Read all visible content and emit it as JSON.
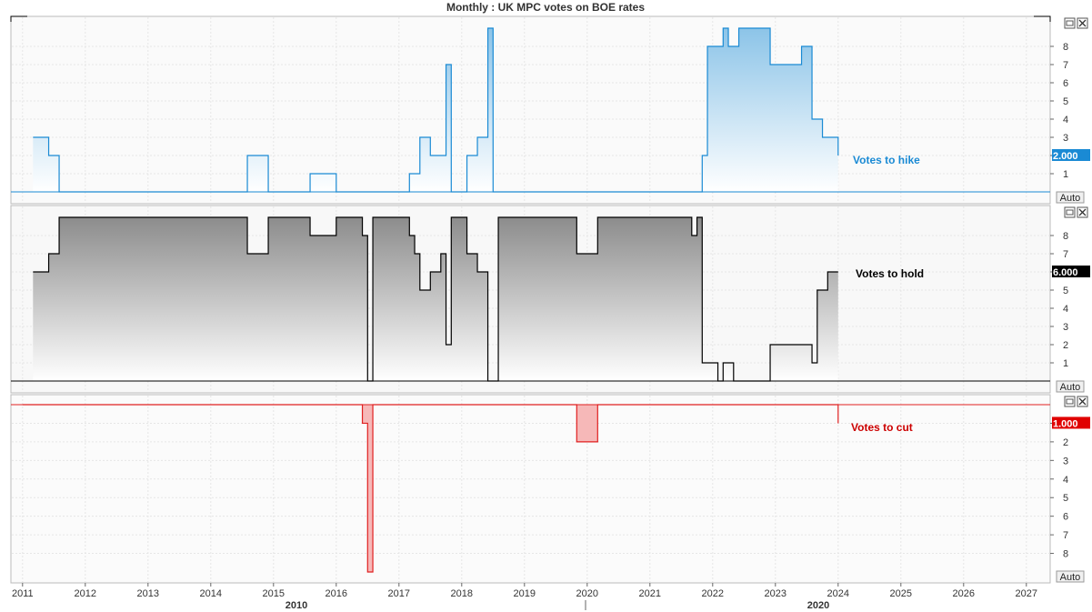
{
  "title": "Monthly : UK MPC votes on BOE rates",
  "controls": {
    "auto_label": "Auto"
  },
  "chart_data": [
    {
      "type": "area",
      "step": true,
      "series": [
        {
          "name": "Votes to hike",
          "color": "#1a8ad4",
          "last_value_label": "2.000",
          "points": [
            [
              "2011-03",
              3
            ],
            [
              "2011-06",
              2
            ],
            [
              "2011-08",
              0
            ],
            [
              "2014-08",
              2
            ],
            [
              "2014-12",
              0
            ],
            [
              "2015-08",
              1
            ],
            [
              "2016-01",
              0
            ],
            [
              "2017-03",
              1
            ],
            [
              "2017-05",
              3
            ],
            [
              "2017-07",
              2
            ],
            [
              "2017-10",
              7
            ],
            [
              "2017-11",
              0
            ],
            [
              "2018-02",
              2
            ],
            [
              "2018-04",
              3
            ],
            [
              "2018-06",
              9
            ],
            [
              "2018-07",
              0
            ],
            [
              "2021-11",
              2
            ],
            [
              "2021-12",
              8
            ],
            [
              "2022-03",
              9
            ],
            [
              "2022-04",
              8
            ],
            [
              "2022-06",
              9
            ],
            [
              "2022-12",
              7
            ],
            [
              "2023-06",
              8
            ],
            [
              "2023-08",
              4
            ],
            [
              "2023-10",
              3
            ],
            [
              "2024-01",
              2
            ]
          ]
        }
      ],
      "ylim": [
        0,
        9.5
      ],
      "yticks": [
        1,
        2,
        3,
        4,
        5,
        6,
        7,
        8
      ]
    },
    {
      "type": "area",
      "step": true,
      "series": [
        {
          "name": "Votes to hold",
          "color": "#000000",
          "last_value_label": "6.000",
          "points": [
            [
              "2011-03",
              6
            ],
            [
              "2011-06",
              7
            ],
            [
              "2011-08",
              9
            ],
            [
              "2014-08",
              7
            ],
            [
              "2014-12",
              9
            ],
            [
              "2015-08",
              8
            ],
            [
              "2016-01",
              9
            ],
            [
              "2016-06",
              8
            ],
            [
              "2016-07",
              0
            ],
            [
              "2016-08",
              9
            ],
            [
              "2017-03",
              8
            ],
            [
              "2017-04",
              7
            ],
            [
              "2017-05",
              5
            ],
            [
              "2017-07",
              6
            ],
            [
              "2017-09",
              7
            ],
            [
              "2017-10",
              2
            ],
            [
              "2017-11",
              9
            ],
            [
              "2018-02",
              7
            ],
            [
              "2018-04",
              6
            ],
            [
              "2018-06",
              0
            ],
            [
              "2018-08",
              9
            ],
            [
              "2019-11",
              7
            ],
            [
              "2020-03",
              9
            ],
            [
              "2021-09",
              8
            ],
            [
              "2021-10",
              9
            ],
            [
              "2021-11",
              1
            ],
            [
              "2022-02",
              0
            ],
            [
              "2022-03",
              1
            ],
            [
              "2022-05",
              0
            ],
            [
              "2022-12",
              2
            ],
            [
              "2023-08",
              1
            ],
            [
              "2023-09",
              5
            ],
            [
              "2023-11",
              6
            ],
            [
              "2024-01",
              6
            ]
          ]
        }
      ],
      "ylim": [
        0,
        9.5
      ],
      "yticks": [
        1,
        2,
        3,
        4,
        5,
        6,
        7,
        8
      ]
    },
    {
      "type": "area",
      "step": true,
      "series": [
        {
          "name": "Votes to cut",
          "color": "#e02020",
          "last_value_label": "1.000",
          "points": [
            [
              "2011-01",
              0
            ],
            [
              "2016-06",
              -1
            ],
            [
              "2016-07",
              -9
            ],
            [
              "2016-08",
              0
            ],
            [
              "2019-11",
              -2
            ],
            [
              "2020-03",
              0
            ],
            [
              "2024-01",
              -1
            ]
          ]
        }
      ],
      "ylim": [
        -9.5,
        0
      ],
      "yticks": [
        -1,
        -2,
        -3,
        -4,
        -5,
        -6,
        -7,
        -8
      ],
      "ytick_labels": [
        "1",
        "2",
        "3",
        "4",
        "5",
        "6",
        "7",
        "8"
      ]
    }
  ],
  "xaxis": {
    "range": [
      "2011-01",
      "2027-06"
    ],
    "year_labels": [
      "2011",
      "2012",
      "2013",
      "2014",
      "2015",
      "2016",
      "2017",
      "2018",
      "2019",
      "2020",
      "2021",
      "2022",
      "2023",
      "2024",
      "2025",
      "2026",
      "2027"
    ],
    "decade_labels": [
      "2010",
      "2020"
    ]
  }
}
